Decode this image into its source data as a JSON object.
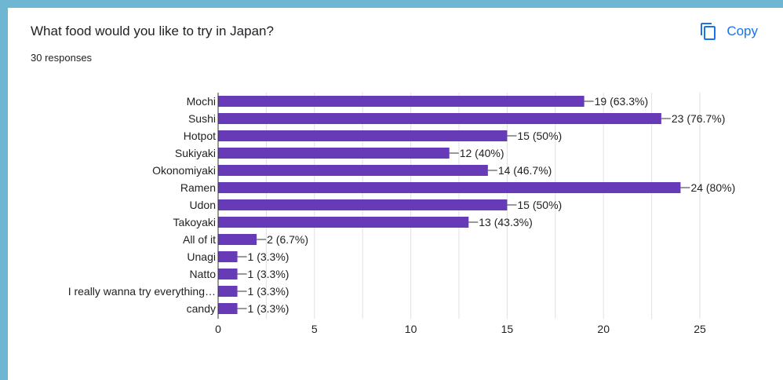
{
  "question": {
    "title": "What food would you like to try in Japan?",
    "responses": "30 responses"
  },
  "copy_button": {
    "label": "Copy",
    "icon": "copy-icon"
  },
  "colors": {
    "bar": "#673ab7",
    "grid": "#e0e0e0",
    "axis": "#333333",
    "accent": "#1a73e8"
  },
  "chart_data": {
    "type": "bar",
    "orientation": "horizontal",
    "title": "",
    "xlabel": "",
    "ylabel": "",
    "categories": [
      "Mochi",
      "Sushi",
      "Hotpot",
      "Sukiyaki",
      "Okonomiyaki",
      "Ramen",
      "Udon",
      "Takoyaki",
      "All of it",
      "Unagi",
      "Natto",
      "I really wanna try everything…",
      "candy"
    ],
    "values": [
      19,
      23,
      15,
      12,
      14,
      24,
      15,
      13,
      2,
      1,
      1,
      1,
      1
    ],
    "data_labels": [
      "19 (63.3%)",
      "23 (76.7%)",
      "15 (50%)",
      "12 (40%)",
      "14 (46.7%)",
      "24 (80%)",
      "15 (50%)",
      "13 (43.3%)",
      "2 (6.7%)",
      "1 (3.3%)",
      "1 (3.3%)",
      "1 (3.3%)",
      "1 (3.3%)"
    ],
    "xlim": [
      0,
      25
    ],
    "xticks": [
      "0",
      "5",
      "10",
      "15",
      "20",
      "25"
    ],
    "grid": true,
    "legend": "none"
  }
}
